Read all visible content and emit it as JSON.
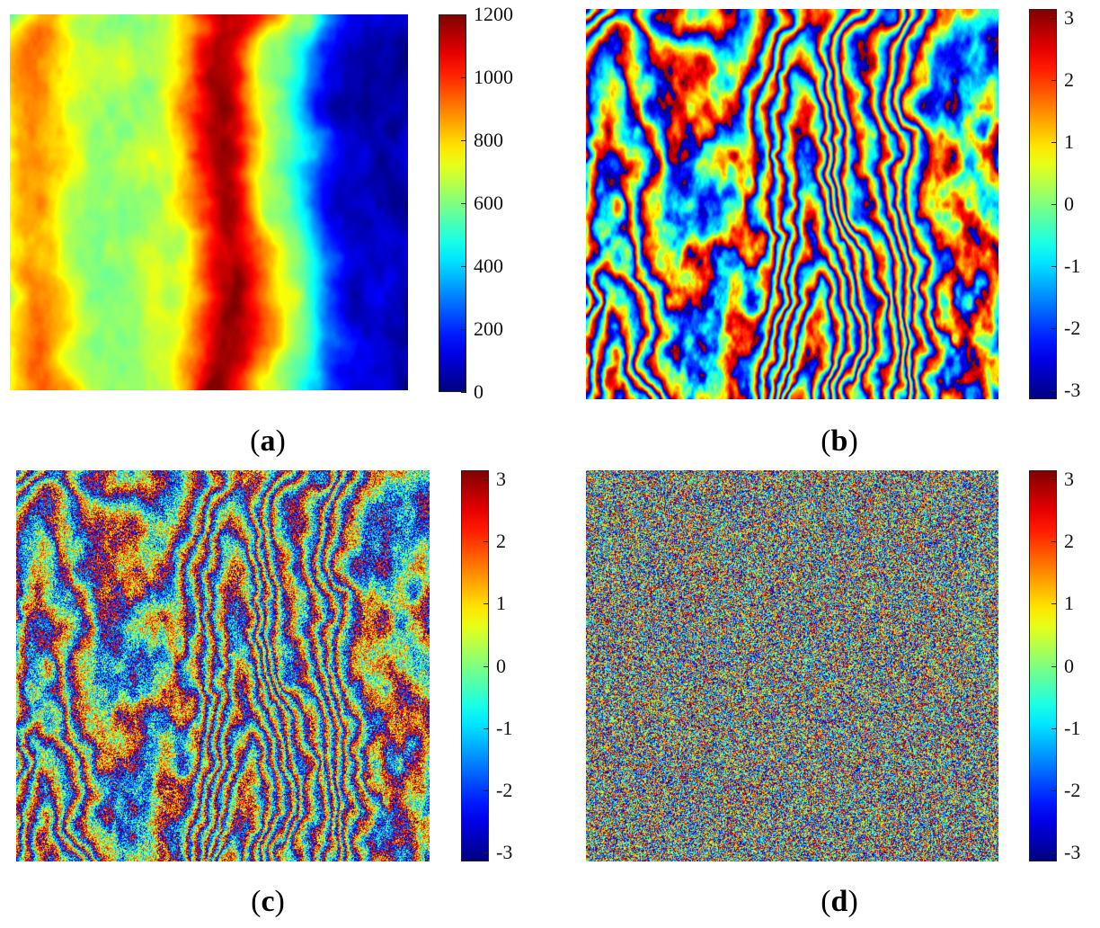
{
  "chart_data": [
    {
      "type": "heatmap",
      "panel_label": "a",
      "colormap": "jet",
      "colorbar": {
        "min": 0,
        "max": 1200,
        "ticks": [
          "1200",
          "1000",
          "800",
          "600",
          "400",
          "200",
          "0"
        ]
      }
    },
    {
      "type": "heatmap",
      "panel_label": "b",
      "colormap": "jet",
      "colorbar": {
        "min": -3.1416,
        "max": 3.1416,
        "ticks": [
          "3",
          "2",
          "1",
          "0",
          "-1",
          "-2",
          "-3"
        ]
      }
    },
    {
      "type": "heatmap",
      "panel_label": "c",
      "colormap": "jet",
      "colorbar": {
        "min": -3.1416,
        "max": 3.1416,
        "ticks": [
          "3",
          "2",
          "1",
          "0",
          "-1",
          "-2",
          "-3"
        ]
      }
    },
    {
      "type": "heatmap",
      "panel_label": "d",
      "colormap": "jet",
      "colorbar": {
        "min": -3.1416,
        "max": 3.1416,
        "ticks": [
          "3",
          "2",
          "1",
          "0",
          "-1",
          "-2",
          "-3"
        ]
      }
    }
  ]
}
